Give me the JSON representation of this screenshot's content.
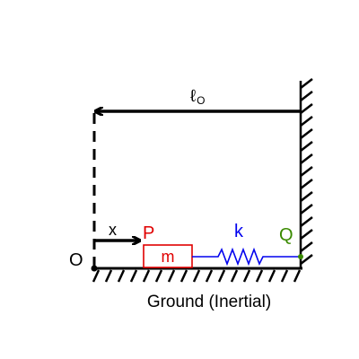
{
  "labels": {
    "length": "ℓ",
    "length_sub": "O",
    "x": "x",
    "origin": "O",
    "point_p": "P",
    "mass": "m",
    "spring": "k",
    "point_q": "Q",
    "ground": "Ground (Inertial)"
  },
  "colors": {
    "black": "#000000",
    "red": "#e00000",
    "blue": "#0000ee",
    "green": "#3a8a00"
  }
}
